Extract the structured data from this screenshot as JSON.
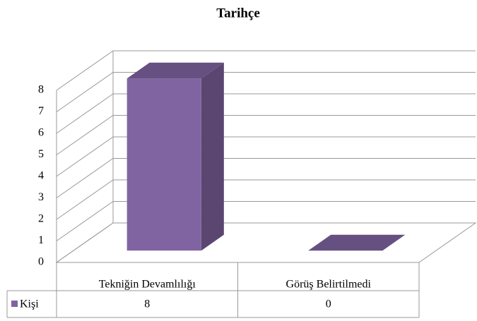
{
  "chart_data": {
    "type": "bar3d",
    "title": "Tarihçe",
    "categories": [
      "Tekniğin Devamlılığı",
      "Görüş Belirtilmedi"
    ],
    "series": [
      {
        "name": "Kişi",
        "color": "#8064a2",
        "values": [
          8,
          0
        ]
      }
    ],
    "ylim": [
      0,
      8
    ],
    "yticks": [
      0,
      1,
      2,
      3,
      4,
      5,
      6,
      7,
      8
    ],
    "grid": true
  }
}
